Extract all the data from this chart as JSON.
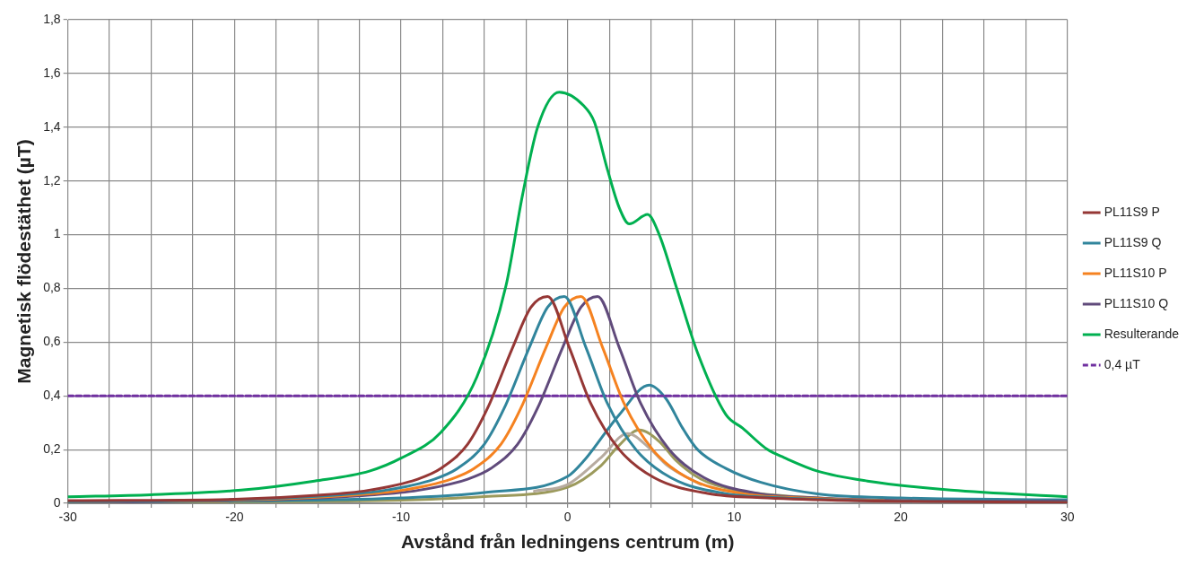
{
  "chart_data": {
    "type": "line",
    "xlabel": "Avstånd från ledningens centrum (m)",
    "ylabel": "Magnetisk flödestäthet (µT)",
    "xlim": [
      -30,
      30
    ],
    "xticks": [
      -30,
      {
        "value": -27.5,
        "label": null
      },
      {
        "value": -25,
        "label": null
      },
      {
        "value": -22.5,
        "label": null
      },
      -20,
      {
        "value": -17.5,
        "label": null
      },
      {
        "value": -15,
        "label": null
      },
      {
        "value": -12.5,
        "label": null
      },
      -10,
      {
        "value": -7.5,
        "label": null
      },
      {
        "value": -5,
        "label": null
      },
      {
        "value": -2.5,
        "label": null
      },
      0,
      {
        "value": 2.5,
        "label": null
      },
      {
        "value": 5,
        "label": null
      },
      {
        "value": 7.5,
        "label": null
      },
      10,
      {
        "value": 12.5,
        "label": null
      },
      {
        "value": 15,
        "label": null
      },
      {
        "value": 17.5,
        "label": null
      },
      20,
      {
        "value": 22.5,
        "label": null
      },
      {
        "value": 25,
        "label": null
      },
      {
        "value": 27.5,
        "label": null
      },
      30
    ],
    "ylim": [
      0,
      1.8
    ],
    "yticks": [
      {
        "value": 0,
        "label": "0"
      },
      {
        "value": 0.2,
        "label": "0,2"
      },
      {
        "value": 0.4,
        "label": "0,4"
      },
      {
        "value": 0.6,
        "label": "0,6"
      },
      {
        "value": 0.8,
        "label": "0,8"
      },
      {
        "value": 1,
        "label": "1"
      },
      {
        "value": 1.2,
        "label": "1,2"
      },
      {
        "value": 1.4,
        "label": "1,4"
      },
      {
        "value": 1.6,
        "label": "1,6"
      },
      {
        "value": 1.8,
        "label": "1,8"
      }
    ],
    "grid": true,
    "legend": "right",
    "marker": "none",
    "line_style": "solid",
    "series": [
      {
        "name": "PL11S9 P",
        "color": "#953735",
        "x": [
          -30,
          -20,
          -15,
          -12,
          -9,
          -7.6,
          -6,
          -4.8,
          -3.3,
          -2.2,
          -1.2,
          0.1,
          1.4,
          3.1,
          5.2,
          8.4,
          12,
          17,
          22,
          30
        ],
        "values": [
          0.01,
          0.015,
          0.03,
          0.048,
          0.09,
          0.13,
          0.22,
          0.355,
          0.58,
          0.73,
          0.77,
          0.58,
          0.37,
          0.2,
          0.095,
          0.037,
          0.02,
          0.01,
          0.007,
          0.003
        ]
      },
      {
        "name": "PL11S9 Q",
        "color": "#31859c",
        "x": [
          -30,
          -19,
          -14,
          -11,
          -8,
          -6.6,
          -5,
          -3.8,
          -2.3,
          -1.2,
          -0.2,
          1.1,
          2.4,
          4.1,
          6.2,
          9.4,
          13,
          18,
          23,
          30
        ],
        "values": [
          0.006,
          0.015,
          0.03,
          0.048,
          0.09,
          0.13,
          0.22,
          0.355,
          0.58,
          0.73,
          0.77,
          0.58,
          0.37,
          0.2,
          0.095,
          0.037,
          0.02,
          0.01,
          0.007,
          0.005
        ]
      },
      {
        "name": "PL11S10 P",
        "color": "#f58220",
        "x": [
          -30,
          -18,
          -13,
          -10,
          -7,
          -5.6,
          -4,
          -2.8,
          -1.3,
          -0.2,
          0.8,
          2.1,
          3.4,
          5.1,
          7.2,
          10.4,
          14,
          19
        ],
        "values": [
          0.006,
          0.015,
          0.03,
          0.048,
          0.09,
          0.13,
          0.22,
          0.355,
          0.58,
          0.73,
          0.77,
          0.58,
          0.37,
          0.2,
          0.095,
          0.037,
          0.02,
          0.01
        ]
      },
      {
        "name": "PL11S10 Q",
        "color": "#604a7b",
        "x": [
          -30,
          -17,
          -12,
          -9,
          -6,
          -4.6,
          -3,
          -1.8,
          -0.3,
          0.8,
          1.8,
          3.1,
          4.4,
          6.1,
          8.2,
          11.4,
          15,
          20,
          25,
          30
        ],
        "values": [
          0.003,
          0.015,
          0.03,
          0.048,
          0.09,
          0.13,
          0.22,
          0.355,
          0.58,
          0.73,
          0.77,
          0.58,
          0.37,
          0.2,
          0.095,
          0.037,
          0.02,
          0.01,
          0.008,
          0.008
        ]
      },
      {
        "name": "Resulterande",
        "color": "#00b050",
        "x": [
          -30,
          -25,
          -19.6,
          -15.2,
          -11.9,
          -10,
          -7.6,
          -5.45,
          -3.7,
          -2.7,
          -1.8,
          -0.5,
          0.96,
          1.6,
          2.4,
          3.1,
          3.7,
          4.8,
          5.5,
          6.5,
          7.8,
          9.5,
          10.5,
          12,
          13,
          15,
          18,
          23,
          30
        ],
        "values": [
          0.024,
          0.032,
          0.049,
          0.083,
          0.12,
          0.168,
          0.265,
          0.47,
          0.81,
          1.15,
          1.4,
          1.53,
          1.48,
          1.42,
          1.24,
          1.1,
          1.04,
          1.075,
          1.0,
          0.81,
          0.56,
          0.33,
          0.28,
          0.2,
          0.17,
          0.12,
          0.083,
          0.049,
          0.024
        ]
      },
      {
        "name": "0,4 µT",
        "color": "#7030a0",
        "line_style": "dashed",
        "x": [
          -30,
          30
        ],
        "values": [
          0.4,
          0.4
        ]
      },
      {
        "color": "#31859c",
        "x": [
          -30,
          -20,
          -10,
          -5,
          0,
          1,
          3.1,
          4.9,
          5.9,
          6.9,
          7.8,
          9.5,
          11.6,
          15,
          20,
          30
        ],
        "values": [
          0.006,
          0.008,
          0.02,
          0.04,
          0.1,
          0.16,
          0.33,
          0.44,
          0.39,
          0.28,
          0.2,
          0.13,
          0.078,
          0.035,
          0.02,
          0.013
        ]
      },
      {
        "color": "#b7aba0",
        "x": [
          -2,
          0,
          2,
          3.6,
          5,
          6,
          8
        ],
        "values": [
          0.045,
          0.07,
          0.17,
          0.26,
          0.2,
          0.14,
          0.07
        ]
      },
      {
        "color": "#9c9a5c",
        "x": [
          -30,
          -20,
          -10,
          -5,
          0,
          2,
          3,
          4.3,
          5.5,
          6.5,
          8,
          10,
          15,
          20,
          30
        ],
        "values": [
          0.003,
          0.005,
          0.012,
          0.025,
          0.06,
          0.14,
          0.21,
          0.273,
          0.23,
          0.16,
          0.09,
          0.05,
          0.02,
          0.01,
          0.004
        ]
      }
    ]
  }
}
